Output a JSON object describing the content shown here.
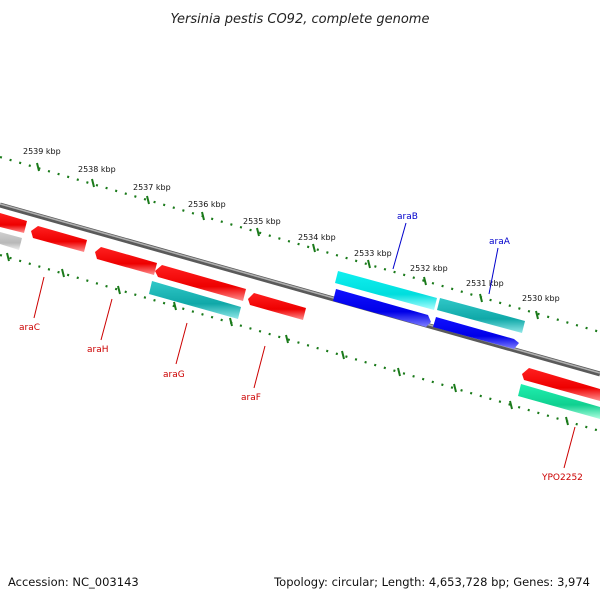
{
  "title": "Yersinia pestis CO92, complete genome",
  "footer": {
    "accession": "Accession: NC_003143",
    "summary": "Topology: circular; Length: 4,653,728 bp; Genes: 3,974"
  },
  "scale_ticks": [
    {
      "label": "2539 kbp"
    },
    {
      "label": "2538 kbp"
    },
    {
      "label": "2537 kbp"
    },
    {
      "label": "2536 kbp"
    },
    {
      "label": "2535 kbp"
    },
    {
      "label": "2534 kbp"
    },
    {
      "label": "2533 kbp"
    },
    {
      "label": "2532 kbp"
    },
    {
      "label": "2531 kbp"
    },
    {
      "label": "2530 kbp"
    }
  ],
  "gene_labels": {
    "araB": "araB",
    "araA": "araA",
    "araC": "araC",
    "araH": "araH",
    "araG": "araG",
    "araF": "araF",
    "YPO2252": "YPO2252"
  },
  "colors": {
    "backbone": "#808080",
    "tick": "#1a7a1a",
    "forward_gene": "#ff0000",
    "cyan_gene": "#00e8e8",
    "teal_gene": "#1ab8b8",
    "blue_gene": "#0000ff",
    "green_gene": "#1ae8a0",
    "grey_gene": "#c0c0c0",
    "forward_label": "#cc0000",
    "reverse_label": "#0000cc"
  }
}
